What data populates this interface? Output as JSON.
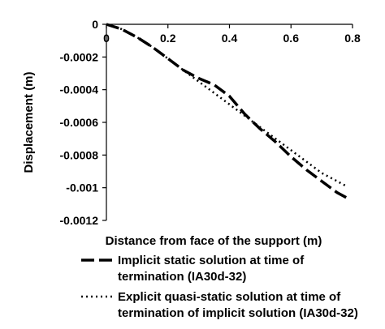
{
  "chart_data": {
    "type": "line",
    "title": "",
    "xlabel": "Distance from face of the support (m)",
    "ylabel": "Displacement (m)",
    "xlim": [
      0,
      0.8
    ],
    "ylim": [
      -0.0012,
      0
    ],
    "x_ticks": [
      "0",
      "0.2",
      "0.4",
      "0.6",
      "0.8"
    ],
    "y_ticks": [
      "0",
      "-0.0002",
      "-0.0004",
      "-0.0006",
      "-0.0008",
      "-0.001",
      "-0.0012"
    ],
    "x_axis_position": "top",
    "grid": false,
    "legend_position": "bottom",
    "series": [
      {
        "name": "Implicit static solution at time of termination (IA30d-32)",
        "line_style": "long-dash",
        "color": "#000000",
        "x": [
          0,
          0.05,
          0.1,
          0.15,
          0.2,
          0.25,
          0.3,
          0.35,
          0.4,
          0.45,
          0.5,
          0.55,
          0.6,
          0.65,
          0.7,
          0.75,
          0.78
        ],
        "y": [
          0,
          -3e-05,
          -8e-05,
          -0.00014,
          -0.00021,
          -0.00028,
          -0.00033,
          -0.00037,
          -0.00044,
          -0.00055,
          -0.00064,
          -0.00072,
          -0.00081,
          -0.00089,
          -0.00096,
          -0.00103,
          -0.00106
        ]
      },
      {
        "name": "Explicit quasi-static solution at time of termination of implicit solution (IA30d-32)",
        "line_style": "dotted",
        "color": "#000000",
        "x": [
          0,
          0.05,
          0.1,
          0.15,
          0.2,
          0.25,
          0.3,
          0.35,
          0.4,
          0.45,
          0.5,
          0.55,
          0.6,
          0.65,
          0.7,
          0.75,
          0.78
        ],
        "y": [
          0,
          -3e-05,
          -8e-05,
          -0.00014,
          -0.00021,
          -0.00028,
          -0.00035,
          -0.00042,
          -0.00049,
          -0.00056,
          -0.00063,
          -0.0007,
          -0.00077,
          -0.00084,
          -0.00091,
          -0.00096,
          -0.00099
        ]
      }
    ],
    "legend": [
      {
        "line1": "Implicit static solution at time of",
        "line2": "termination (IA30d-32)"
      },
      {
        "line1": "Explicit quasi-static solution at time of",
        "line2": "termination of implicit solution (IA30d-32)"
      }
    ]
  }
}
